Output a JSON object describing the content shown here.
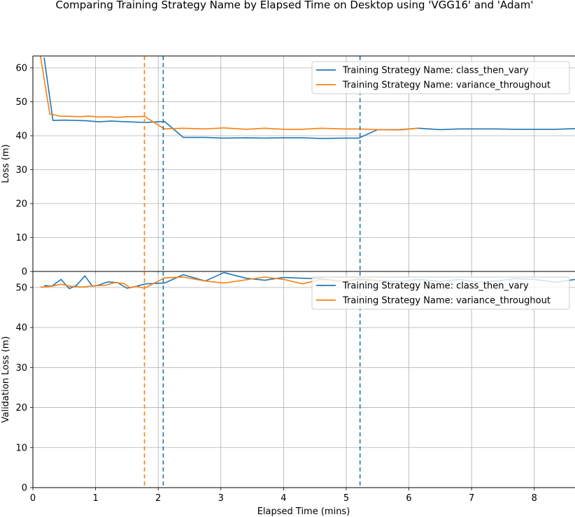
{
  "figure": {
    "title": "Comparing Training Strategy Name by Elapsed Time on Desktop using 'VGG16' and 'Adam'",
    "xlabel": "Elapsed Time (mins)"
  },
  "colors": {
    "class_then_vary": "#1f77b4",
    "variance_throughout": "#ff7f0e",
    "grid": "#b0b0b0"
  },
  "chart_data": [
    {
      "type": "line",
      "ylabel": "Loss (m)",
      "xlim": [
        0,
        8.65
      ],
      "ylim": [
        0,
        63.5
      ],
      "xticks": [
        0,
        1,
        2,
        3,
        4,
        5,
        6,
        7,
        8
      ],
      "yticks": [
        0,
        10,
        20,
        30,
        40,
        50,
        60
      ],
      "grid": true,
      "legend": "upper right",
      "series": [
        {
          "name": "Training Strategy Name: class_then_vary",
          "key": "class_then_vary",
          "x": [
            0.18,
            0.32,
            0.5,
            0.7,
            0.85,
            1.05,
            1.25,
            1.5,
            1.8,
            2.1,
            2.4,
            2.75,
            3.05,
            3.4,
            3.7,
            4.0,
            4.3,
            4.6,
            4.95,
            5.2,
            5.5,
            5.85,
            6.15,
            6.5,
            6.8,
            7.1,
            7.4,
            7.7,
            8.0,
            8.35,
            8.65
          ],
          "y": [
            63,
            44.5,
            44.6,
            44.5,
            44.4,
            44.1,
            44.3,
            44.1,
            43.9,
            44.2,
            39.5,
            39.5,
            39.3,
            39.4,
            39.3,
            39.4,
            39.4,
            39.2,
            39.3,
            39.3,
            41.8,
            41.8,
            42.2,
            41.8,
            42.0,
            42.0,
            42.0,
            41.9,
            41.9,
            41.9,
            42.1
          ]
        },
        {
          "name": "Training Strategy Name: variance_throughout",
          "key": "variance_throughout",
          "x": [
            0.12,
            0.27,
            0.42,
            0.6,
            0.75,
            0.9,
            1.05,
            1.2,
            1.35,
            1.5,
            1.65,
            1.78,
            2.1,
            2.4,
            2.75,
            3.05,
            3.4,
            3.7,
            4.0,
            4.3,
            4.6,
            4.95,
            5.2,
            5.5,
            5.85,
            6.15
          ],
          "y": [
            63.5,
            46.4,
            45.8,
            45.7,
            45.6,
            45.8,
            45.5,
            45.6,
            45.4,
            45.6,
            45.6,
            45.7,
            42.0,
            42.2,
            42.0,
            42.3,
            41.9,
            42.2,
            41.9,
            41.9,
            42.2,
            42.0,
            42.0,
            41.8,
            41.7,
            42.2
          ]
        }
      ],
      "vlines": [
        {
          "x": 1.78,
          "key": "variance_throughout"
        },
        {
          "x": 2.08,
          "key": "class_then_vary"
        },
        {
          "x": 5.22,
          "key": "class_then_vary"
        }
      ]
    },
    {
      "type": "line",
      "ylabel": "Validation Loss (m)",
      "xlim": [
        0,
        8.65
      ],
      "ylim": [
        0,
        54
      ],
      "xticks": [
        0,
        1,
        2,
        3,
        4,
        5,
        6,
        7,
        8
      ],
      "xticklabels": [
        "0",
        "1",
        "2",
        "3",
        "4",
        "5",
        "6",
        "7",
        "8"
      ],
      "yticks": [
        0,
        10,
        20,
        30,
        40,
        50
      ],
      "grid": true,
      "legend": "upper right",
      "series": [
        {
          "name": "Training Strategy Name: class_then_vary",
          "key": "class_then_vary",
          "x": [
            0.18,
            0.3,
            0.45,
            0.58,
            0.7,
            0.83,
            0.95,
            1.05,
            1.2,
            1.35,
            1.5,
            1.65,
            1.8,
            2.1,
            2.4,
            2.75,
            3.05,
            3.4,
            3.7,
            4.0,
            4.3,
            4.6,
            4.95,
            5.2,
            5.5,
            5.85,
            6.15,
            6.5,
            6.8,
            7.1,
            7.4,
            7.7,
            8.0,
            8.35,
            8.65
          ],
          "y": [
            50.5,
            50.3,
            52.0,
            49.7,
            50.6,
            52.9,
            50.3,
            50.6,
            51.4,
            51.2,
            49.8,
            50.3,
            50.9,
            51.1,
            53.2,
            51.6,
            53.7,
            52.3,
            51.8,
            52.5,
            52.3,
            52.2,
            51.5,
            52.0,
            51.7,
            51.5,
            52.0,
            51.5,
            52.0,
            51.3,
            51.6,
            52.2,
            52.0,
            51.3,
            52.0
          ]
        },
        {
          "name": "Training Strategy Name: variance_throughout",
          "key": "variance_throughout",
          "x": [
            0.12,
            0.3,
            0.45,
            0.6,
            0.8,
            0.95,
            1.15,
            1.3,
            1.45,
            1.55,
            1.65,
            1.78,
            2.1,
            2.4,
            2.75,
            3.05,
            3.4,
            3.7,
            4.0,
            4.3,
            4.6,
            4.95,
            5.2,
            5.5
          ],
          "y": [
            50.1,
            50.3,
            50.8,
            50.3,
            50.1,
            50.4,
            50.5,
            51.2,
            51.0,
            49.9,
            50.3,
            49.8,
            52.4,
            52.6,
            51.6,
            51.1,
            51.9,
            52.6,
            52.0,
            50.9,
            52.0,
            51.5,
            52.2,
            51.8
          ]
        }
      ],
      "vlines": [
        {
          "x": 1.78,
          "key": "variance_throughout"
        },
        {
          "x": 2.08,
          "key": "class_then_vary"
        },
        {
          "x": 5.22,
          "key": "class_then_vary"
        }
      ]
    }
  ]
}
